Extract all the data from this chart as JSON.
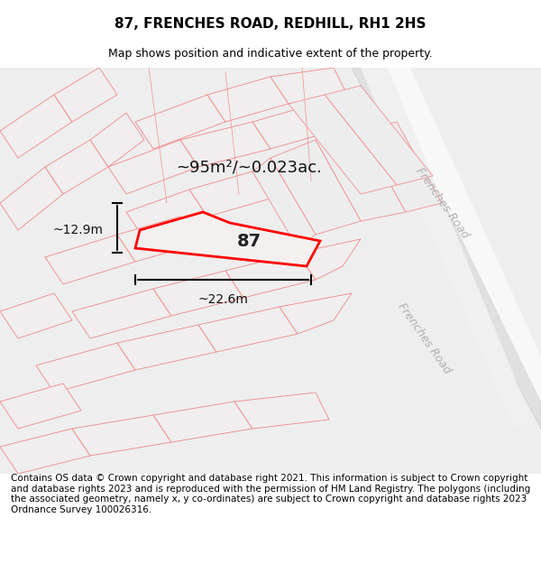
{
  "title": "87, FRENCHES ROAD, REDHILL, RH1 2HS",
  "subtitle": "Map shows position and indicative extent of the property.",
  "footer": "Contains OS data © Crown copyright and database right 2021. This information is subject to Crown copyright and database rights 2023 and is reproduced with the permission of HM Land Registry. The polygons (including the associated geometry, namely x, y co-ordinates) are subject to Crown copyright and database rights 2023 Ordnance Survey 100026316.",
  "area_label": "~95m²/~0.023ac.",
  "width_label": "~22.6m",
  "height_label": "~12.9m",
  "property_number": "87",
  "background_color": "#f5f5f5",
  "map_bg_color": "#f0f0f0",
  "road_color": "#ffffff",
  "plot_line_color": "#ff0000",
  "other_line_color": "#ff9999",
  "road_label_color": "#aaaaaa",
  "road_label_1": "Frenches Road",
  "road_label_2": "Frenches Road",
  "title_fontsize": 11,
  "subtitle_fontsize": 9,
  "footer_fontsize": 7.5
}
